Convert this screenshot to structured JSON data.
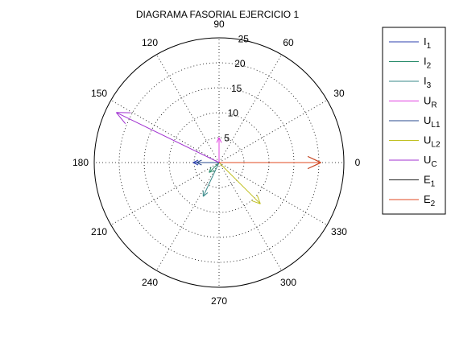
{
  "chart_data": {
    "type": "polar",
    "title": "DIAGRAMA FASORIAL EJERCICIO 1",
    "rmax": 25,
    "radial_ticks": [
      5,
      10,
      15,
      20,
      25
    ],
    "radial_tick_labels": [
      "5",
      "10",
      "15",
      "20",
      "25"
    ],
    "angle_ticks": [
      0,
      30,
      60,
      90,
      120,
      150,
      180,
      210,
      240,
      270,
      300,
      330
    ],
    "angle_tick_labels": [
      "0",
      "30",
      "60",
      "90",
      "120",
      "150",
      "180",
      "210",
      "240",
      "270",
      "300",
      "330"
    ],
    "grid": true,
    "legend_position": "right",
    "series": [
      {
        "sub": "1",
        "magnitude": 5.2,
        "angle_deg": 180,
        "color": "#2b3fae"
      },
      {
        "sub": "2",
        "magnitude": 2.8,
        "angle_deg": 225,
        "color": "#2a8c6c"
      },
      {
        "sub": "3",
        "magnitude": 7.5,
        "angle_deg": 245,
        "color": "#3a8a8a"
      },
      {
        "sub": "R",
        "magnitude": 5.0,
        "angle_deg": 90,
        "color": "#e040e0"
      },
      {
        "sub": "L1",
        "magnitude": 4.5,
        "angle_deg": 180,
        "color": "#2a4a8e"
      },
      {
        "sub": "L2",
        "magnitude": 11.7,
        "angle_deg": 315,
        "color": "#c0c020"
      },
      {
        "sub": "C",
        "magnitude": 22.9,
        "angle_deg": 154,
        "color": "#a030d0"
      },
      {
        "sub": "1",
        "magnitude": 20.4,
        "angle_deg": 0,
        "color": "#202020"
      },
      {
        "sub": "2",
        "magnitude": 20.4,
        "angle_deg": 0,
        "color": "#e04a20"
      }
    ],
    "legend_entries": [
      {
        "letter": "I",
        "sub": "1"
      },
      {
        "letter": "I",
        "sub": "2"
      },
      {
        "letter": "I",
        "sub": "3"
      },
      {
        "letter": "U",
        "sub": "R"
      },
      {
        "letter": "U",
        "sub": "L1"
      },
      {
        "letter": "U",
        "sub": "L2"
      },
      {
        "letter": "U",
        "sub": "C"
      },
      {
        "letter": "E",
        "sub": "1"
      },
      {
        "letter": "E",
        "sub": "2"
      }
    ]
  }
}
